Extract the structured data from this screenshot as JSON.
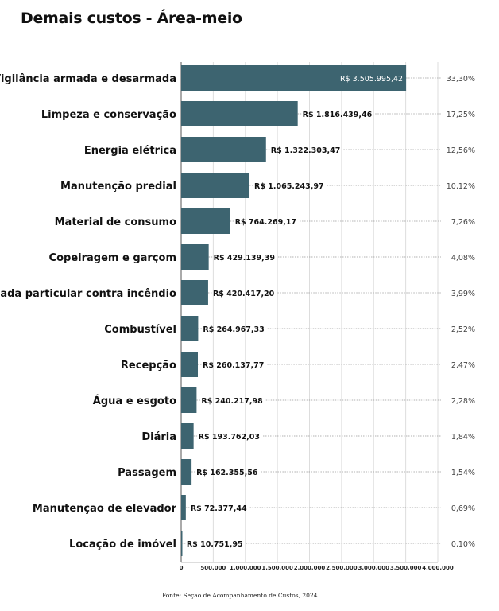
{
  "chart_data": {
    "type": "bar",
    "orientation": "horizontal",
    "title": "Demais custos - Área-meio",
    "source": "Fonte: Seção de Acompanhamento de Custos, 2024.",
    "categories": [
      "Vigilância armada e desarmada",
      "Limpeza e conservação",
      "Energia elétrica",
      "Manutenção predial",
      "Material de consumo",
      "Copeiragem e garçom",
      "Brigada particular contra incêndio",
      "Combustível",
      "Recepção",
      "Água e esgoto",
      "Diária",
      "Passagem",
      "Manutenção de elevador",
      "Locação de imóvel"
    ],
    "values": [
      3505995.42,
      1816439.46,
      1322303.47,
      1065243.97,
      764269.17,
      429139.39,
      420417.2,
      264967.33,
      260137.77,
      240217.98,
      193762.03,
      162355.56,
      72377.44,
      10751.95
    ],
    "value_labels": [
      "R$ 3.505.995,42",
      "R$ 1.816.439,46",
      "R$ 1.322.303,47",
      "R$ 1.065.243,97",
      "R$ 764.269,17",
      "R$ 429.139,39",
      "R$ 420.417,20",
      "R$ 264.967,33",
      "R$ 260.137,77",
      "R$ 240.217,98",
      "R$ 193.762,03",
      "R$ 162.355,56",
      "R$ 72.377,44",
      "R$ 10.751,95"
    ],
    "percent_labels": [
      "33,30%",
      "17,25%",
      "12,56%",
      "10,12%",
      "7,26%",
      "4,08%",
      "3,99%",
      "2,52%",
      "2,47%",
      "2,28%",
      "1,84%",
      "1,54%",
      "0,69%",
      "0,10%"
    ],
    "xlim": [
      0,
      4000000
    ],
    "xticks": [
      0,
      500000,
      1000000,
      1500000,
      2000000,
      2500000,
      3000000,
      3500000,
      4000000
    ],
    "xtick_labels": [
      "0",
      "500.000",
      "1.000.000",
      "1.500.000",
      "2.000.000",
      "2.500.000",
      "3.000.000",
      "3.500.000",
      "4.000.000"
    ],
    "grid": true,
    "colors": {
      "bar": "#3d6470",
      "grid": "#dddddd"
    }
  }
}
